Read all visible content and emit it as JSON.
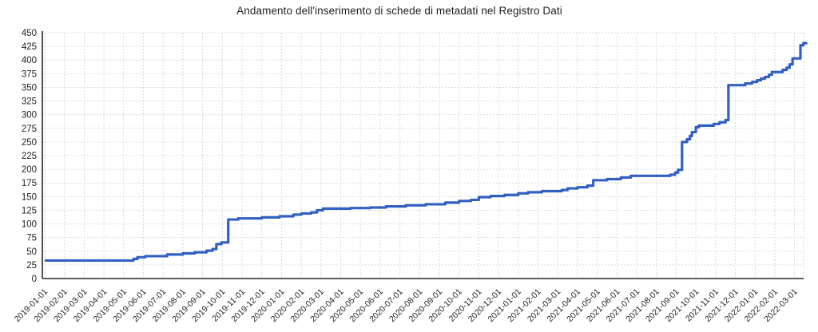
{
  "chart_data": {
    "type": "line",
    "title": "Andamento dell'inserimento di schede di metadati nel Registro Dati",
    "xlabel": "",
    "ylabel": "",
    "legend": "none",
    "grid": "dashed-both-axes",
    "line_color": "#3160c2",
    "grid_color": "#d9d9d9",
    "axis_color": "#262626",
    "text_color": "#1f1f1f",
    "ylim": [
      0,
      450
    ],
    "y_ticks": [
      0,
      25,
      50,
      75,
      100,
      125,
      150,
      175,
      200,
      225,
      250,
      275,
      300,
      325,
      350,
      375,
      400,
      425,
      450
    ],
    "x_tick_labels": [
      "2019-01-01",
      "2019-02-01",
      "2019-03-01",
      "2019-04-01",
      "2019-05-01",
      "2019-06-01",
      "2019-07-01",
      "2019-08-01",
      "2019-09-01",
      "2019-10-01",
      "2019-11-01",
      "2019-12-01",
      "2020-01-01",
      "2020-02-01",
      "2020-03-01",
      "2020-04-01",
      "2020-05-01",
      "2020-06-01",
      "2020-07-01",
      "2020-08-01",
      "2020-09-01",
      "2020-10-01",
      "2020-11-01",
      "2020-12-01",
      "2021-01-01",
      "2021-02-01",
      "2021-03-01",
      "2021-04-01",
      "2021-05-01",
      "2021-06-01",
      "2021-07-01",
      "2021-08-01",
      "2021-09-01",
      "2021-10-01",
      "2021-11-01",
      "2021-12-01",
      "2022-01-01",
      "2022-02-01",
      "2022-03-01"
    ],
    "xlim_months": [
      0,
      38.65
    ],
    "series": [
      {
        "step": "after",
        "points_month_value": [
          [
            0,
            33
          ],
          [
            4.5,
            36
          ],
          [
            4.7,
            39
          ],
          [
            5.1,
            41
          ],
          [
            6.2,
            44
          ],
          [
            7.0,
            46
          ],
          [
            7.6,
            48
          ],
          [
            8.2,
            51
          ],
          [
            8.5,
            54
          ],
          [
            8.7,
            63
          ],
          [
            8.95,
            66
          ],
          [
            9.3,
            108
          ],
          [
            9.8,
            110
          ],
          [
            11.0,
            112
          ],
          [
            11.9,
            114
          ],
          [
            12.6,
            117
          ],
          [
            13.0,
            119
          ],
          [
            13.5,
            121
          ],
          [
            13.8,
            125
          ],
          [
            14.1,
            128
          ],
          [
            15.5,
            129
          ],
          [
            16.5,
            130
          ],
          [
            17.3,
            132
          ],
          [
            18.3,
            134
          ],
          [
            19.3,
            136
          ],
          [
            20.3,
            139
          ],
          [
            21.0,
            142
          ],
          [
            21.6,
            144
          ],
          [
            22.0,
            149
          ],
          [
            22.6,
            151
          ],
          [
            23.3,
            153
          ],
          [
            24.0,
            156
          ],
          [
            24.5,
            158
          ],
          [
            25.2,
            160
          ],
          [
            26.2,
            162
          ],
          [
            26.5,
            165
          ],
          [
            27.0,
            167
          ],
          [
            27.5,
            170
          ],
          [
            27.8,
            180
          ],
          [
            28.5,
            182
          ],
          [
            29.2,
            185
          ],
          [
            29.7,
            188
          ],
          [
            31.7,
            190
          ],
          [
            31.95,
            194
          ],
          [
            32.1,
            199
          ],
          [
            32.3,
            250
          ],
          [
            32.55,
            255
          ],
          [
            32.7,
            261
          ],
          [
            32.8,
            268
          ],
          [
            33.0,
            277
          ],
          [
            33.15,
            280
          ],
          [
            33.9,
            283
          ],
          [
            34.2,
            286
          ],
          [
            34.5,
            290
          ],
          [
            34.65,
            354
          ],
          [
            35.5,
            357
          ],
          [
            35.85,
            360
          ],
          [
            36.1,
            363
          ],
          [
            36.3,
            366
          ],
          [
            36.5,
            369
          ],
          [
            36.7,
            373
          ],
          [
            36.85,
            378
          ],
          [
            37.4,
            382
          ],
          [
            37.6,
            386
          ],
          [
            37.75,
            392
          ],
          [
            37.9,
            403
          ],
          [
            38.3,
            427
          ],
          [
            38.45,
            431
          ],
          [
            38.65,
            431
          ]
        ]
      }
    ]
  }
}
